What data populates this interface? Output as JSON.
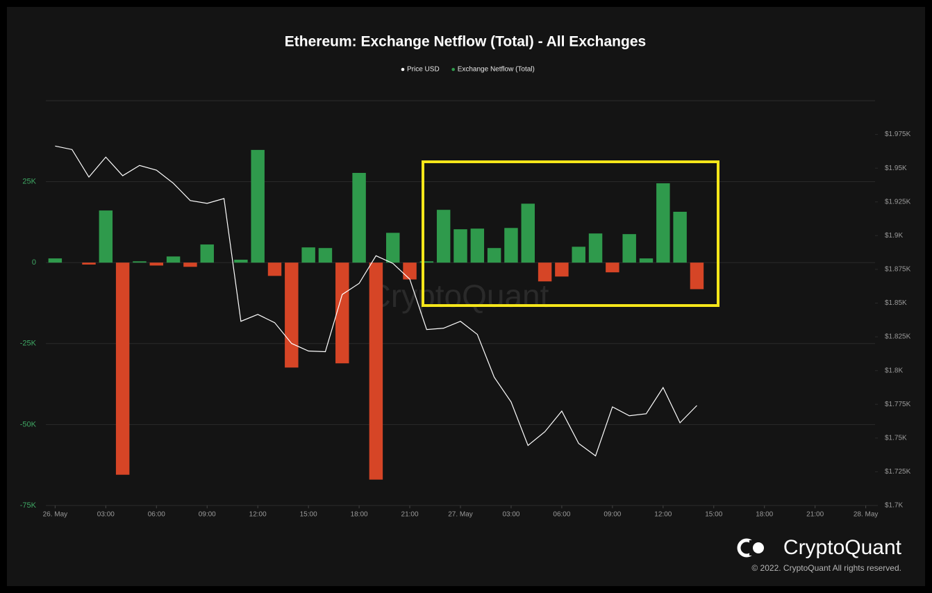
{
  "chart_data": {
    "type": "bar",
    "title": "Ethereum: Exchange Netflow (Total) - All Exchanges",
    "watermark": "CryptoQuant",
    "brand": "CryptoQuant",
    "copyright": "© 2022. CryptoQuant All rights reserved.",
    "x": [
      0,
      1,
      2,
      3,
      4,
      5,
      6,
      7,
      8,
      9,
      10,
      11,
      12,
      13,
      14,
      15,
      16,
      17,
      18,
      19,
      20,
      21,
      22,
      23,
      24,
      25,
      26,
      27,
      28,
      29,
      30,
      31,
      32,
      33,
      34,
      35,
      36,
      37,
      38
    ],
    "xlim": [
      -0.55,
      48.55
    ],
    "xticks": [
      {
        "value": 0,
        "label": "26. May"
      },
      {
        "value": 3,
        "label": "03:00"
      },
      {
        "value": 6,
        "label": "06:00"
      },
      {
        "value": 9,
        "label": "09:00"
      },
      {
        "value": 12,
        "label": "12:00"
      },
      {
        "value": 15,
        "label": "15:00"
      },
      {
        "value": 18,
        "label": "18:00"
      },
      {
        "value": 21,
        "label": "21:00"
      },
      {
        "value": 24,
        "label": "27. May"
      },
      {
        "value": 27,
        "label": "03:00"
      },
      {
        "value": 30,
        "label": "06:00"
      },
      {
        "value": 33,
        "label": "09:00"
      },
      {
        "value": 36,
        "label": "12:00"
      },
      {
        "value": 39,
        "label": "15:00"
      },
      {
        "value": 42,
        "label": "18:00"
      },
      {
        "value": 45,
        "label": "21:00"
      },
      {
        "value": 48,
        "label": "28. May"
      }
    ],
    "ylim": [
      -75000,
      50000
    ],
    "yticks": [
      {
        "value": 25000,
        "label": "25K"
      },
      0,
      {
        "value": -25000,
        "label": "-25K"
      },
      {
        "value": -50000,
        "label": "-50K"
      },
      {
        "value": -75000,
        "label": "-75K"
      }
    ],
    "y2lim": [
      1700,
      2000
    ],
    "y2ticks": [
      {
        "value": 1975,
        "label": "$1.975K"
      },
      {
        "value": 1950,
        "label": "$1.95K"
      },
      {
        "value": 1925,
        "label": "$1.925K"
      },
      {
        "value": 1900,
        "label": "$1.9K"
      },
      {
        "value": 1875,
        "label": "$1.875K"
      },
      {
        "value": 1850,
        "label": "$1.85K"
      },
      {
        "value": 1825,
        "label": "$1.825K"
      },
      {
        "value": 1800,
        "label": "$1.8K"
      },
      {
        "value": 1775,
        "label": "$1.775K"
      },
      {
        "value": 1750,
        "label": "$1.75K"
      },
      {
        "value": 1725,
        "label": "$1.725K"
      },
      {
        "value": 1700,
        "label": "$1.7K"
      }
    ],
    "grid": true,
    "legend": "top",
    "series": [
      {
        "name": "Price USD",
        "type": "line",
        "axis": "y2",
        "color": "#ffffff",
        "values": [
          1966.4,
          1963.8,
          1943.4,
          1958.2,
          1944.4,
          1952,
          1948.5,
          1938.8,
          1926,
          1923.9,
          1927.5,
          1836.5,
          1841.6,
          1835.5,
          1820.1,
          1814.5,
          1814,
          1856.4,
          1864.6,
          1885.1,
          1879.4,
          1867.7,
          1830.4,
          1831.4,
          1836.5,
          1826.8,
          1795.1,
          1776.7,
          1744.5,
          1754.7,
          1770,
          1746,
          1736.8,
          1773.1,
          1766.5,
          1768,
          1787.4,
          1761.3,
          1774.1
        ]
      },
      {
        "name": "Exchange Netflow (Total)",
        "type": "bar",
        "color": "#2f9a4c",
        "negative_color": "#d64526",
        "values": [
          1300,
          0,
          -600,
          16100,
          -65500,
          400,
          -900,
          1900,
          -1300,
          5600,
          0,
          900,
          34800,
          -4100,
          -32400,
          4700,
          4500,
          -31100,
          27700,
          -67000,
          9200,
          -5200,
          400,
          16300,
          10300,
          10500,
          4500,
          10700,
          18200,
          -5800,
          -4300,
          4900,
          9000,
          -3000,
          8800,
          1300,
          24500,
          15700,
          -8200
        ]
      }
    ]
  }
}
